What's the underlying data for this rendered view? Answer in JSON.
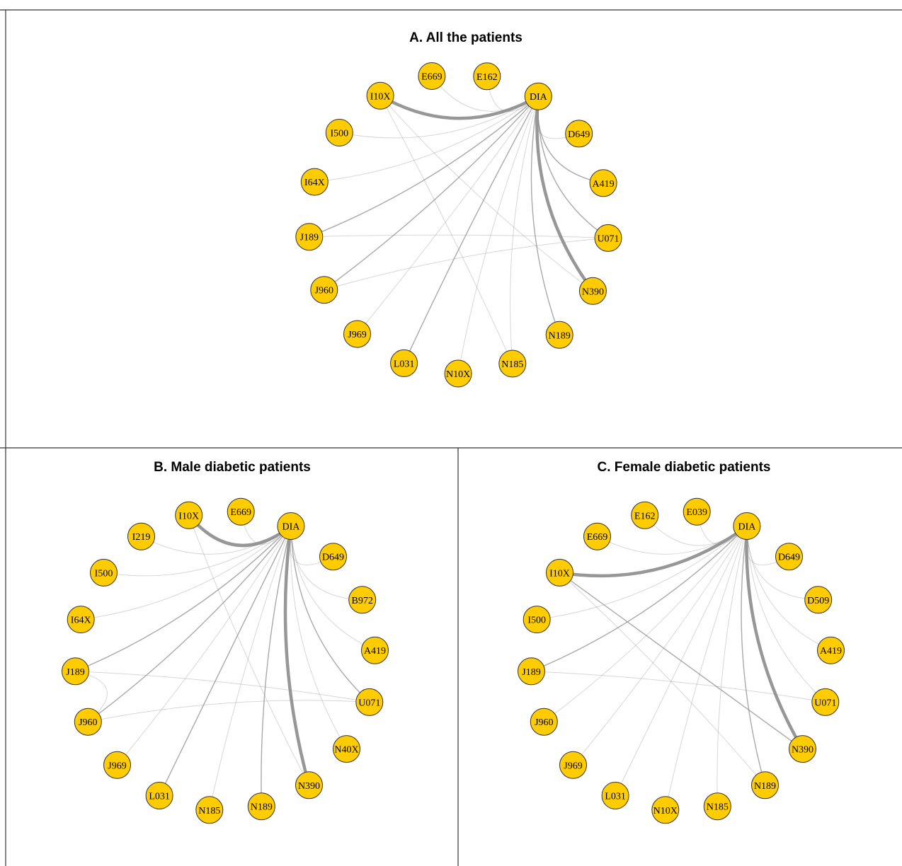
{
  "colors": {
    "node_fill": "#FFCC00",
    "node_stroke": "#333333",
    "edge": "#8c8c8c",
    "frame": "#333333"
  },
  "panels": [
    {
      "id": "A",
      "title": "A. All the patients",
      "hub": "DIA",
      "nodes": [
        "DIA",
        "D649",
        "A419",
        "U071",
        "N390",
        "N189",
        "N185",
        "N10X",
        "L031",
        "J969",
        "J960",
        "J189",
        "I64X",
        "I500",
        "I10X",
        "E669",
        "E162"
      ],
      "edges": [
        {
          "from": "DIA",
          "to": "I10X",
          "weight": 5
        },
        {
          "from": "DIA",
          "to": "N390",
          "weight": 5
        },
        {
          "from": "DIA",
          "to": "N189",
          "weight": 2
        },
        {
          "from": "DIA",
          "to": "J189",
          "weight": 2
        },
        {
          "from": "DIA",
          "to": "J960",
          "weight": 2
        },
        {
          "from": "DIA",
          "to": "A419",
          "weight": 2
        },
        {
          "from": "DIA",
          "to": "U071",
          "weight": 2
        },
        {
          "from": "DIA",
          "to": "L031",
          "weight": 2
        },
        {
          "from": "DIA",
          "to": "N10X",
          "weight": 1
        },
        {
          "from": "DIA",
          "to": "N185",
          "weight": 1
        },
        {
          "from": "DIA",
          "to": "J969",
          "weight": 1
        },
        {
          "from": "DIA",
          "to": "I64X",
          "weight": 1
        },
        {
          "from": "DIA",
          "to": "I500",
          "weight": 1
        },
        {
          "from": "DIA",
          "to": "D649",
          "weight": 1
        },
        {
          "from": "DIA",
          "to": "E162",
          "weight": 1
        },
        {
          "from": "DIA",
          "to": "E669",
          "weight": 1
        },
        {
          "from": "I10X",
          "to": "N390",
          "weight": 1
        },
        {
          "from": "I10X",
          "to": "N185",
          "weight": 1
        },
        {
          "from": "J189",
          "to": "U071",
          "weight": 1
        },
        {
          "from": "J960",
          "to": "U071",
          "weight": 1
        }
      ]
    },
    {
      "id": "B",
      "title": "B. Male diabetic patients",
      "hub": "DIA",
      "nodes": [
        "DIA",
        "D649",
        "B972",
        "A419",
        "U071",
        "N40X",
        "N390",
        "N189",
        "N185",
        "L031",
        "J969",
        "J960",
        "J189",
        "I64X",
        "I500",
        "I219",
        "I10X",
        "E669"
      ],
      "edges": [
        {
          "from": "DIA",
          "to": "I10X",
          "weight": 5
        },
        {
          "from": "DIA",
          "to": "N390",
          "weight": 4
        },
        {
          "from": "DIA",
          "to": "U071",
          "weight": 2
        },
        {
          "from": "DIA",
          "to": "J189",
          "weight": 2
        },
        {
          "from": "DIA",
          "to": "J960",
          "weight": 2
        },
        {
          "from": "DIA",
          "to": "N189",
          "weight": 2
        },
        {
          "from": "DIA",
          "to": "L031",
          "weight": 2
        },
        {
          "from": "DIA",
          "to": "A419",
          "weight": 1
        },
        {
          "from": "DIA",
          "to": "N40X",
          "weight": 1
        },
        {
          "from": "DIA",
          "to": "N185",
          "weight": 1
        },
        {
          "from": "DIA",
          "to": "J969",
          "weight": 1
        },
        {
          "from": "DIA",
          "to": "I64X",
          "weight": 1
        },
        {
          "from": "DIA",
          "to": "I500",
          "weight": 1
        },
        {
          "from": "DIA",
          "to": "I219",
          "weight": 1
        },
        {
          "from": "DIA",
          "to": "D649",
          "weight": 1
        },
        {
          "from": "DIA",
          "to": "B972",
          "weight": 1
        },
        {
          "from": "DIA",
          "to": "E669",
          "weight": 1
        },
        {
          "from": "I10X",
          "to": "N390",
          "weight": 1
        },
        {
          "from": "J189",
          "to": "U071",
          "weight": 1
        },
        {
          "from": "J960",
          "to": "U071",
          "weight": 1
        },
        {
          "from": "J189",
          "to": "J960",
          "weight": 1
        }
      ]
    },
    {
      "id": "C",
      "title": "C. Female diabetic patients",
      "hub": "DIA",
      "nodes": [
        "DIA",
        "D649",
        "D509",
        "A419",
        "U071",
        "N390",
        "N189",
        "N185",
        "N10X",
        "L031",
        "J969",
        "J960",
        "J189",
        "I500",
        "I10X",
        "E669",
        "E162",
        "E039"
      ],
      "edges": [
        {
          "from": "DIA",
          "to": "I10X",
          "weight": 5
        },
        {
          "from": "DIA",
          "to": "N390",
          "weight": 5
        },
        {
          "from": "DIA",
          "to": "N189",
          "weight": 2
        },
        {
          "from": "DIA",
          "to": "J189",
          "weight": 2
        },
        {
          "from": "DIA",
          "to": "J960",
          "weight": 1
        },
        {
          "from": "DIA",
          "to": "U071",
          "weight": 1
        },
        {
          "from": "DIA",
          "to": "A419",
          "weight": 1
        },
        {
          "from": "DIA",
          "to": "D509",
          "weight": 1
        },
        {
          "from": "DIA",
          "to": "D649",
          "weight": 1
        },
        {
          "from": "DIA",
          "to": "L031",
          "weight": 1
        },
        {
          "from": "DIA",
          "to": "N10X",
          "weight": 1
        },
        {
          "from": "DIA",
          "to": "N185",
          "weight": 1
        },
        {
          "from": "DIA",
          "to": "J969",
          "weight": 1
        },
        {
          "from": "DIA",
          "to": "I500",
          "weight": 1
        },
        {
          "from": "DIA",
          "to": "E669",
          "weight": 1
        },
        {
          "from": "DIA",
          "to": "E162",
          "weight": 1
        },
        {
          "from": "DIA",
          "to": "E039",
          "weight": 1
        },
        {
          "from": "I10X",
          "to": "N390",
          "weight": 2
        },
        {
          "from": "I10X",
          "to": "N189",
          "weight": 1
        },
        {
          "from": "J189",
          "to": "U071",
          "weight": 1
        }
      ]
    }
  ]
}
